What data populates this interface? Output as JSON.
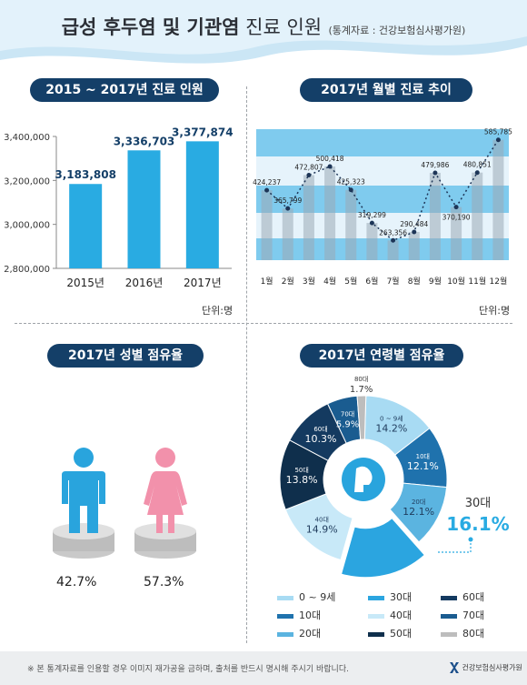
{
  "header": {
    "title_bold1": "급성 후두염 및 기관염",
    "title_thin": " 진료 인원",
    "source": "(통계자료 : 건강보험심사평가원)"
  },
  "sections": {
    "yearly_title": "2015 ~ 2017년 진료 인원",
    "monthly_title": "2017년 월별 진료 추이",
    "gender_title": "2017년 성별 점유율",
    "age_title": "2017년 연령별 점유율",
    "unit_label": "단위:명"
  },
  "chart_data": [
    {
      "type": "bar",
      "categories": [
        "2015년",
        "2016년",
        "2017년"
      ],
      "values": [
        3183808,
        3336703,
        3377874
      ],
      "value_labels": [
        "3,183,808",
        "3,336,703",
        "3,377,874"
      ],
      "ylim": [
        2800000,
        3400000
      ],
      "yticks": [
        2800000,
        3000000,
        3200000,
        3400000
      ],
      "ytick_labels": [
        "2,800,000",
        "3,000,000",
        "3,200,000",
        "3,400,000"
      ],
      "color": "#29abe2"
    },
    {
      "type": "line",
      "categories": [
        "1월",
        "2월",
        "3월",
        "4월",
        "5월",
        "6월",
        "7월",
        "8월",
        "9월",
        "10월",
        "11월",
        "12월"
      ],
      "values": [
        424237,
        365799,
        472807,
        500418,
        425323,
        319299,
        263356,
        290484,
        479986,
        370190,
        480851,
        585785
      ],
      "value_labels": [
        "424,237",
        "365,799",
        "472,807",
        "500,418",
        "425,323",
        "319,299",
        "263,356",
        "290,484",
        "479,986",
        "370,190",
        "480,851",
        "585,785"
      ]
    },
    {
      "type": "bar",
      "categories": [
        "남성",
        "여성"
      ],
      "values": [
        42.7,
        57.3
      ],
      "value_labels": [
        "42.7%",
        "57.3%"
      ],
      "colors": [
        "#29a4dd",
        "#f291ab"
      ]
    },
    {
      "type": "pie",
      "categories": [
        "0 ~ 9세",
        "10대",
        "20대",
        "30대",
        "40대",
        "50대",
        "60대",
        "70대",
        "80대"
      ],
      "values": [
        14.2,
        12.1,
        12.1,
        16.1,
        14.9,
        13.8,
        10.3,
        5.9,
        1.7
      ],
      "value_labels": [
        "14.2%",
        "12.1%",
        "12.1%",
        "16.1%",
        "14.9%",
        "13.8%",
        "10.3%",
        "5.9%",
        "1.7%"
      ],
      "colors": [
        "#a8dbf3",
        "#1f72ad",
        "#5bb4e0",
        "#2ba5e0",
        "#c8e9f8",
        "#0f2f4c",
        "#143a60",
        "#1a5c90",
        "#bdbdbd"
      ],
      "highlight": {
        "label": "30대",
        "value": "16.1%"
      }
    }
  ],
  "footer": {
    "note": "※ 본 통계자료를 인용할 경우 이미지 재가공을 금하며, 출처를 반드시 명시해 주시기 바랍니다.",
    "logo": "건강보험심사평가원"
  },
  "colors": {
    "navy": "#143f68",
    "blue": "#29abe2",
    "pink": "#f291ab",
    "male": "#29a4dd",
    "header_wave": "#cbe6f5"
  }
}
